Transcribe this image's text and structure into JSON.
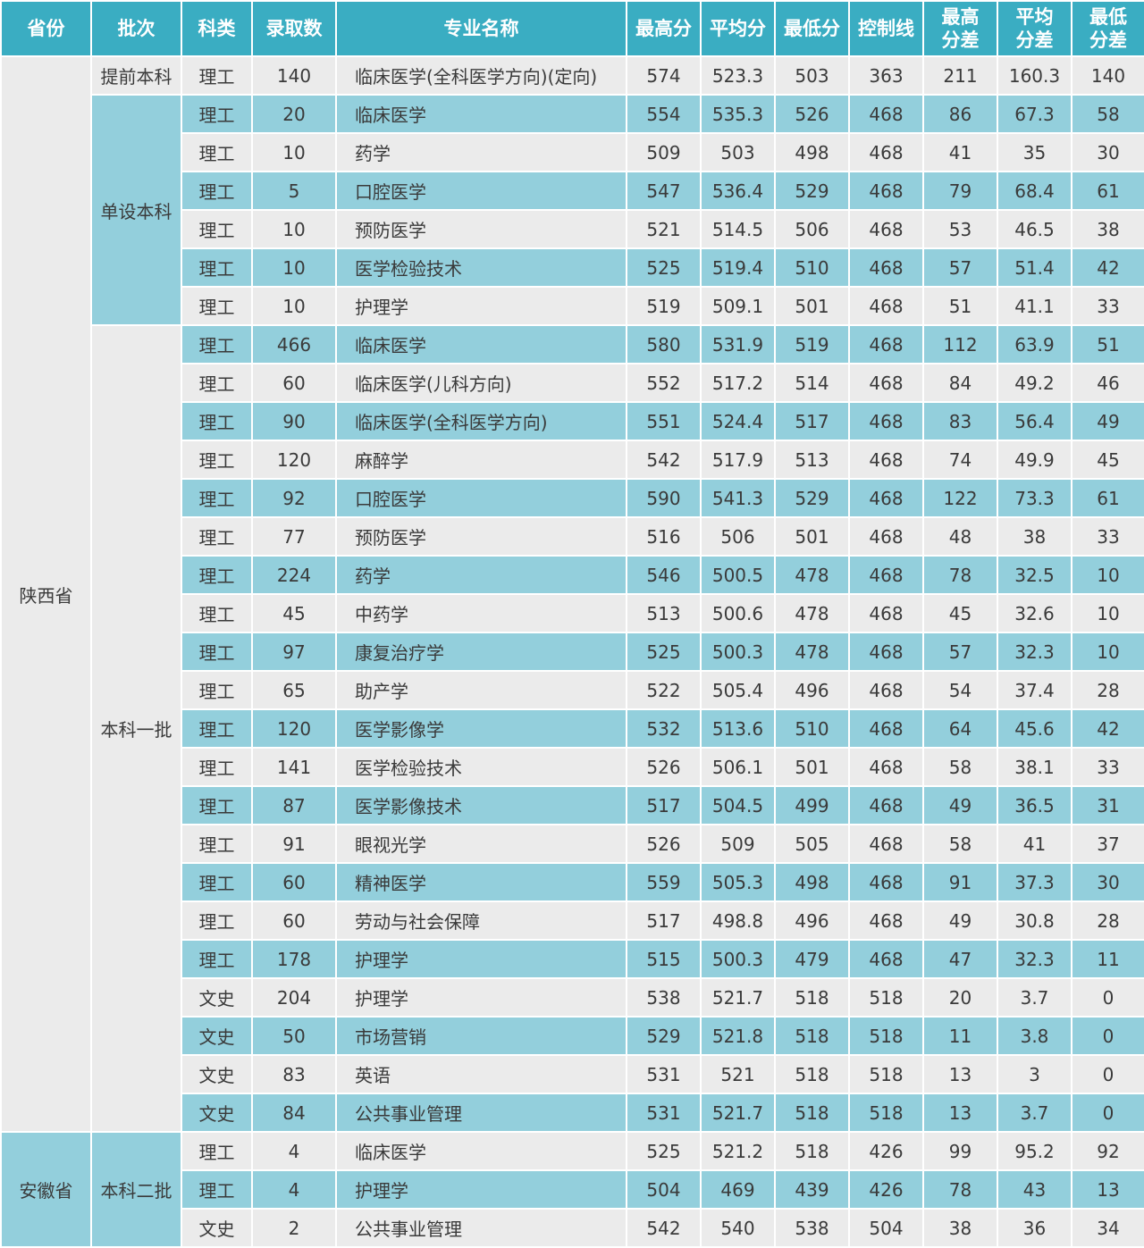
{
  "colors": {
    "header": "#3aadc2",
    "row_alt": "#93cfdc",
    "row": "#ebebeb"
  },
  "headers": [
    "省份",
    "批次",
    "科类",
    "录取数",
    "专业名称",
    "最高分",
    "平均分",
    "最低分",
    "控制线",
    "最高\n分差",
    "平均\n分差",
    "最低\n分差"
  ],
  "groups": [
    {
      "province": "陕西省",
      "province_highlight": false,
      "batches": [
        {
          "batch": "提前本科",
          "highlight": false,
          "rows": [
            [
              "理工",
              "140",
              "临床医学(全科医学方向)(定向)",
              "574",
              "523.3",
              "503",
              "363",
              "211",
              "160.3",
              "140"
            ]
          ]
        },
        {
          "batch": "单设本科",
          "highlight": true,
          "rows": [
            [
              "理工",
              "20",
              "临床医学",
              "554",
              "535.3",
              "526",
              "468",
              "86",
              "67.3",
              "58"
            ],
            [
              "理工",
              "10",
              "药学",
              "509",
              "503",
              "498",
              "468",
              "41",
              "35",
              "30"
            ],
            [
              "理工",
              "5",
              "口腔医学",
              "547",
              "536.4",
              "529",
              "468",
              "79",
              "68.4",
              "61"
            ],
            [
              "理工",
              "10",
              "预防医学",
              "521",
              "514.5",
              "506",
              "468",
              "53",
              "46.5",
              "38"
            ],
            [
              "理工",
              "10",
              "医学检验技术",
              "525",
              "519.4",
              "510",
              "468",
              "57",
              "51.4",
              "42"
            ],
            [
              "理工",
              "10",
              "护理学",
              "519",
              "509.1",
              "501",
              "468",
              "51",
              "41.1",
              "33"
            ]
          ]
        },
        {
          "batch": "本科一批",
          "highlight": false,
          "rows": [
            [
              "理工",
              "466",
              "临床医学",
              "580",
              "531.9",
              "519",
              "468",
              "112",
              "63.9",
              "51"
            ],
            [
              "理工",
              "60",
              "临床医学(儿科方向)",
              "552",
              "517.2",
              "514",
              "468",
              "84",
              "49.2",
              "46"
            ],
            [
              "理工",
              "90",
              "临床医学(全科医学方向)",
              "551",
              "524.4",
              "517",
              "468",
              "83",
              "56.4",
              "49"
            ],
            [
              "理工",
              "120",
              "麻醉学",
              "542",
              "517.9",
              "513",
              "468",
              "74",
              "49.9",
              "45"
            ],
            [
              "理工",
              "92",
              "口腔医学",
              "590",
              "541.3",
              "529",
              "468",
              "122",
              "73.3",
              "61"
            ],
            [
              "理工",
              "77",
              "预防医学",
              "516",
              "506",
              "501",
              "468",
              "48",
              "38",
              "33"
            ],
            [
              "理工",
              "224",
              "药学",
              "546",
              "500.5",
              "478",
              "468",
              "78",
              "32.5",
              "10"
            ],
            [
              "理工",
              "45",
              "中药学",
              "513",
              "500.6",
              "478",
              "468",
              "45",
              "32.6",
              "10"
            ],
            [
              "理工",
              "97",
              "康复治疗学",
              "525",
              "500.3",
              "478",
              "468",
              "57",
              "32.3",
              "10"
            ],
            [
              "理工",
              "65",
              "助产学",
              "522",
              "505.4",
              "496",
              "468",
              "54",
              "37.4",
              "28"
            ],
            [
              "理工",
              "120",
              "医学影像学",
              "532",
              "513.6",
              "510",
              "468",
              "64",
              "45.6",
              "42"
            ],
            [
              "理工",
              "141",
              "医学检验技术",
              "526",
              "506.1",
              "501",
              "468",
              "58",
              "38.1",
              "33"
            ],
            [
              "理工",
              "87",
              "医学影像技术",
              "517",
              "504.5",
              "499",
              "468",
              "49",
              "36.5",
              "31"
            ],
            [
              "理工",
              "91",
              "眼视光学",
              "526",
              "509",
              "505",
              "468",
              "58",
              "41",
              "37"
            ],
            [
              "理工",
              "60",
              "精神医学",
              "559",
              "505.3",
              "498",
              "468",
              "91",
              "37.3",
              "30"
            ],
            [
              "理工",
              "60",
              "劳动与社会保障",
              "517",
              "498.8",
              "496",
              "468",
              "49",
              "30.8",
              "28"
            ],
            [
              "理工",
              "178",
              "护理学",
              "515",
              "500.3",
              "479",
              "468",
              "47",
              "32.3",
              "11"
            ],
            [
              "文史",
              "204",
              "护理学",
              "538",
              "521.7",
              "518",
              "518",
              "20",
              "3.7",
              "0"
            ],
            [
              "文史",
              "50",
              "市场营销",
              "529",
              "521.8",
              "518",
              "518",
              "11",
              "3.8",
              "0"
            ],
            [
              "文史",
              "83",
              "英语",
              "531",
              "521",
              "518",
              "518",
              "13",
              "3",
              "0"
            ],
            [
              "文史",
              "84",
              "公共事业管理",
              "531",
              "521.7",
              "518",
              "518",
              "13",
              "3.7",
              "0"
            ]
          ]
        }
      ]
    },
    {
      "province": "安徽省",
      "province_highlight": true,
      "batches": [
        {
          "batch": "本科二批",
          "highlight": true,
          "rows": [
            [
              "理工",
              "4",
              "临床医学",
              "525",
              "521.2",
              "518",
              "426",
              "99",
              "95.2",
              "92"
            ],
            [
              "理工",
              "4",
              "护理学",
              "504",
              "469",
              "439",
              "426",
              "78",
              "43",
              "13"
            ],
            [
              "文史",
              "2",
              "公共事业管理",
              "542",
              "540",
              "538",
              "504",
              "38",
              "36",
              "34"
            ]
          ]
        }
      ]
    }
  ]
}
